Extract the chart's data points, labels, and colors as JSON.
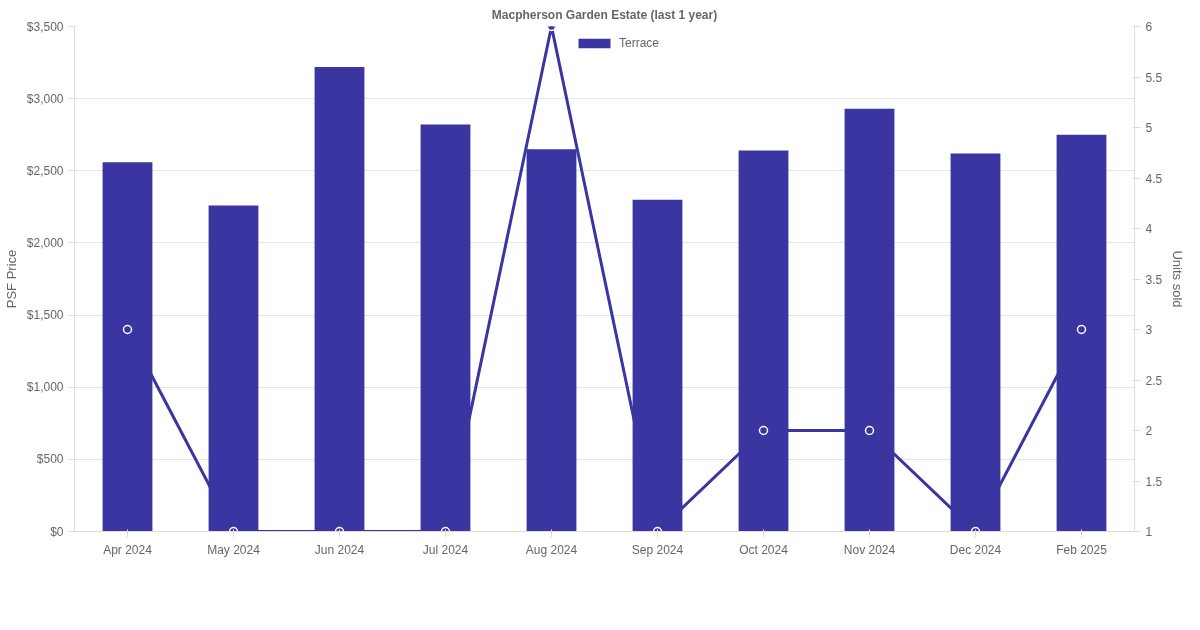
{
  "chart_data": {
    "type": "bar",
    "title": "Macpherson Garden Estate (last 1 year)",
    "ylabel": "PSF Price",
    "y2label": "Units sold",
    "categories": [
      "Apr 2024",
      "May 2024",
      "Jun 2024",
      "Jul 2024",
      "Aug 2024",
      "Sep 2024",
      "Oct 2024",
      "Nov 2024",
      "Dec 2024",
      "Feb 2025"
    ],
    "series": [
      {
        "name": "Terrace",
        "color": "#3a35a0",
        "values": [
          2560,
          2260,
          3220,
          2820,
          2650,
          2300,
          2640,
          2930,
          2620,
          2750
        ]
      },
      {
        "type": "line",
        "axis": "y2",
        "color": "#3a35a0",
        "marker": "circle",
        "values": [
          3,
          1,
          1,
          1,
          6,
          1,
          2,
          2,
          1,
          3
        ]
      }
    ],
    "ylim": [
      0,
      3500
    ],
    "yticks": [
      {
        "value": 0,
        "label": "$0"
      },
      {
        "value": 500,
        "label": "$500"
      },
      {
        "value": 1000,
        "label": "$1,000"
      },
      {
        "value": 1500,
        "label": "$1,500"
      },
      {
        "value": 2000,
        "label": "$2,000"
      },
      {
        "value": 2500,
        "label": "$2,500"
      },
      {
        "value": 3000,
        "label": "$3,000"
      },
      {
        "value": 3500,
        "label": "$3,500"
      }
    ],
    "y2lim": [
      1,
      6
    ],
    "y2ticks": [
      1,
      1.5,
      2,
      2.5,
      3,
      3.5,
      4,
      4.5,
      5,
      5.5,
      6
    ],
    "grid": "y",
    "legend": "top"
  }
}
